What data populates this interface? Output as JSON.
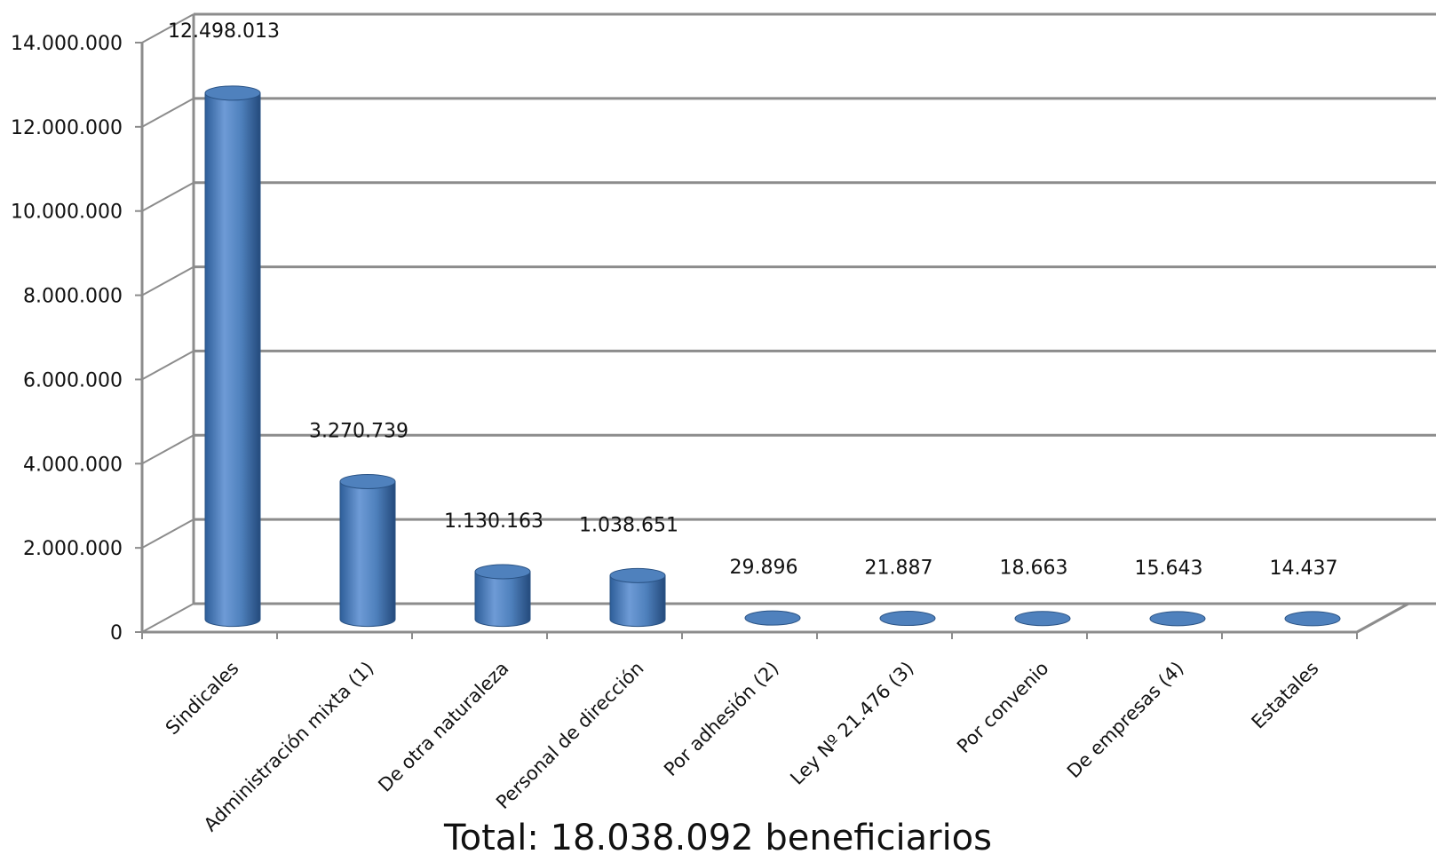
{
  "chart_data": {
    "type": "bar",
    "title": "",
    "xlabel": "",
    "ylabel": "",
    "ylim": [
      0,
      14000000
    ],
    "grid": true,
    "style": "3d-cylinder",
    "bar_color": "#4F81BD",
    "bar_highlight": "#8DB3E2",
    "bar_shadow": "#254C7F",
    "y_ticks": [
      {
        "value": 0,
        "label": "0"
      },
      {
        "value": 2000000,
        "label": "2.000.000"
      },
      {
        "value": 4000000,
        "label": "4.000.000"
      },
      {
        "value": 6000000,
        "label": "6.000.000"
      },
      {
        "value": 8000000,
        "label": "8.000.000"
      },
      {
        "value": 10000000,
        "label": "10.000.000"
      },
      {
        "value": 12000000,
        "label": "12.000.000"
      },
      {
        "value": 14000000,
        "label": "14.000.000"
      }
    ],
    "categories": [
      "Sindicales",
      "Administración mixta (1)",
      "De otra naturaleza",
      "Personal de dirección",
      "Por adhesión (2)",
      "Ley Nº 21.476 (3)",
      "Por convenio",
      "De empresas (4)",
      "Estatales"
    ],
    "values": [
      12498013,
      3270739,
      1130163,
      1038651,
      29896,
      21887,
      18663,
      15643,
      14437
    ],
    "data_labels": [
      "12.498.013",
      "3.270.739",
      "1.130.163",
      "1.038.651",
      "29.896",
      "21.887",
      "18.663",
      "15.643",
      "14.437"
    ]
  },
  "caption": {
    "total_text": "Total: 18.038.092 beneficiarios"
  }
}
